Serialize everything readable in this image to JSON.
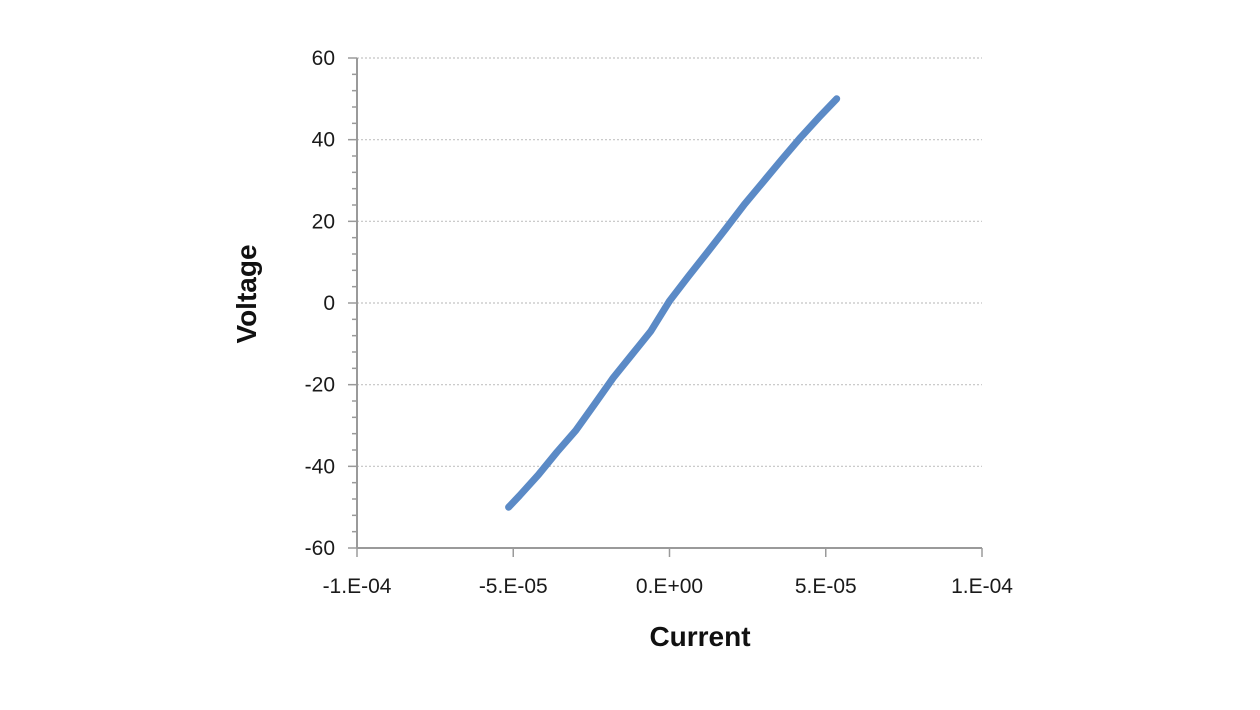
{
  "chart_data": {
    "type": "line",
    "title": "",
    "xlabel": "Current",
    "ylabel": "Voltage",
    "xlim": [
      -0.0001,
      0.0001
    ],
    "ylim": [
      -60,
      60
    ],
    "x_ticks": [
      -0.0001,
      -5e-05,
      0,
      5e-05,
      0.0001
    ],
    "x_tick_labels": [
      "-1.E-04",
      "-5.E-05",
      "0.E+00",
      "5.E-05",
      "1.E-04"
    ],
    "y_ticks": [
      60,
      40,
      20,
      0,
      -20,
      -40,
      -60
    ],
    "y_tick_labels": [
      "60",
      "40",
      "20",
      "0",
      "-20",
      "-40",
      "-60"
    ],
    "grid": "horizontal",
    "legend": "none",
    "series": [
      {
        "color": "#5b8ac6",
        "x": [
          -5.15e-05,
          -4.8e-05,
          -4.2e-05,
          -3.6e-05,
          -3e-05,
          -2.4e-05,
          -1.8e-05,
          -1.2e-05,
          -6e-06,
          0,
          6e-06,
          1.2e-05,
          1.8e-05,
          2.4e-05,
          3e-05,
          3.6e-05,
          4.2e-05,
          4.8e-05,
          5.35e-05
        ],
        "y": [
          -50,
          -47.2,
          -42.1,
          -36.5,
          -31.2,
          -24.8,
          -18.3,
          -12.6,
          -6.9,
          0.5,
          6.5,
          12.3,
          18.2,
          24.2,
          29.7,
          35.2,
          40.6,
          45.6,
          50
        ]
      }
    ]
  }
}
